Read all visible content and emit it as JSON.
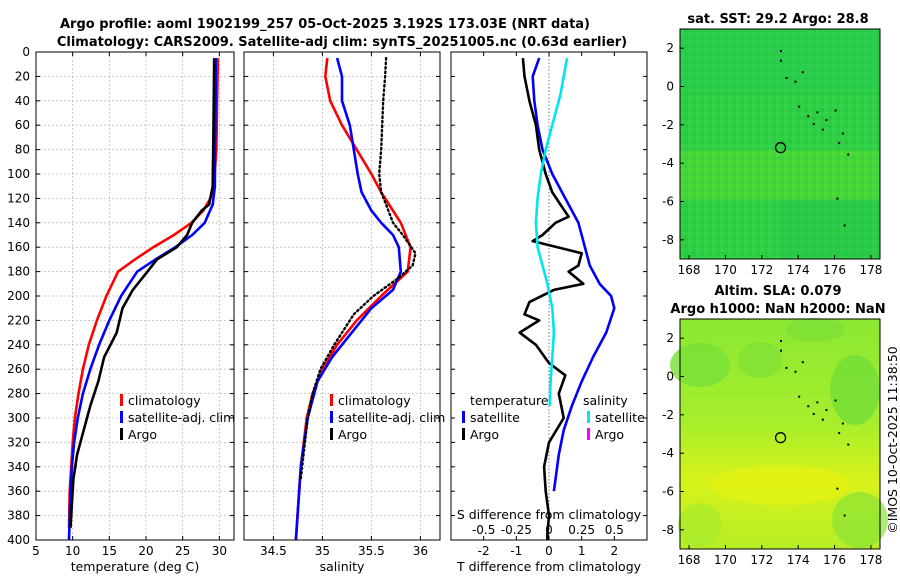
{
  "header": {
    "title_line1": "Argo profile: aoml 1902199_257 05-Oct-2025 3.192S 173.03E (NRT data)",
    "title_line2": "Climatology: CARS2009. Satellite-adj clim: synTS_20251005.nc (0.63d earlier)"
  },
  "side_stamp": "©IMOS 10-Oct-2025 11:38:50",
  "colors": {
    "climatology": "#ff0000",
    "satellite": "#0000ff",
    "argo": "#000000",
    "salinity_satellite": "#00e5ee",
    "salinity_argo": "#ff00ff"
  },
  "chart_data": [
    {
      "type": "line",
      "id": "temperature",
      "xlabel": "temperature (deg C)",
      "ylabel": "",
      "xlim": [
        5,
        32
      ],
      "ylim": [
        400,
        0
      ],
      "xticks": [
        5,
        10,
        15,
        20,
        25,
        30
      ],
      "yticks": [
        0,
        20,
        40,
        60,
        80,
        100,
        120,
        140,
        160,
        180,
        200,
        220,
        240,
        260,
        280,
        300,
        320,
        340,
        360,
        380,
        400
      ],
      "grid": true,
      "legend": [
        "climatology",
        "satellite-adj. clim",
        "Argo"
      ],
      "series": [
        {
          "name": "climatology",
          "x": [
            29.8,
            29.7,
            29.6,
            29.3,
            28.8,
            27.8,
            26.2,
            23.8,
            21.0,
            18.5,
            16.2,
            14.6,
            13.3,
            12.2,
            11.4,
            10.8,
            10.3,
            10.0,
            9.8,
            9.6,
            9.5
          ],
          "y": [
            5,
            40,
            80,
            105,
            120,
            130,
            140,
            150,
            160,
            170,
            180,
            200,
            220,
            240,
            260,
            280,
            300,
            320,
            340,
            360,
            390
          ]
        },
        {
          "name": "satellite-adj. clim",
          "x": [
            29.5,
            29.5,
            29.4,
            29.4,
            29.1,
            28.0,
            26.3,
            24.0,
            21.3,
            18.8,
            16.6,
            15.0,
            13.6,
            12.4,
            11.4,
            10.7,
            10.2,
            9.9,
            9.7,
            9.5
          ],
          "y": [
            5,
            40,
            80,
            110,
            125,
            140,
            150,
            160,
            170,
            180,
            200,
            220,
            240,
            260,
            280,
            300,
            320,
            340,
            360,
            400
          ]
        },
        {
          "name": "Argo",
          "x": [
            29.3,
            29.2,
            29.1,
            28.6,
            27.6,
            26.3,
            25.6,
            24.2,
            21.5,
            20.2,
            18.2,
            16.8,
            16.0,
            14.3,
            13.5,
            12.4,
            11.5,
            10.6,
            10.1,
            9.9,
            9.7
          ],
          "y": [
            5,
            60,
            110,
            125,
            130,
            140,
            150,
            160,
            170,
            180,
            195,
            210,
            230,
            250,
            270,
            290,
            310,
            330,
            350,
            370,
            390
          ]
        }
      ]
    },
    {
      "type": "line",
      "id": "salinity",
      "xlabel": "salinity",
      "xlim": [
        34.2,
        36.2
      ],
      "ylim": [
        400,
        0
      ],
      "xticks": [
        34.5,
        35,
        35.5,
        36
      ],
      "grid": true,
      "legend": [
        "climatology",
        "satellite-adj. clim",
        "Argo"
      ],
      "series": [
        {
          "name": "climatology",
          "x": [
            35.05,
            35.03,
            35.08,
            35.2,
            35.35,
            35.5,
            35.6,
            35.68,
            35.8,
            35.9,
            35.87,
            35.6,
            35.35,
            35.15,
            35.0,
            34.9,
            34.84,
            34.78,
            34.73
          ],
          "y": [
            5,
            20,
            40,
            60,
            80,
            100,
            115,
            125,
            140,
            160,
            180,
            200,
            220,
            240,
            260,
            280,
            300,
            340,
            400
          ]
        },
        {
          "name": "satellite-adj. clim",
          "x": [
            35.15,
            35.2,
            35.2,
            35.28,
            35.32,
            35.36,
            35.4,
            35.5,
            35.6,
            35.72,
            35.78,
            35.8,
            35.72,
            35.5,
            35.3,
            35.1,
            34.95,
            34.85,
            34.78,
            34.73
          ],
          "y": [
            5,
            20,
            40,
            60,
            80,
            100,
            115,
            130,
            140,
            150,
            160,
            180,
            195,
            210,
            230,
            250,
            270,
            300,
            340,
            400
          ]
        },
        {
          "name": "Argo",
          "x": [
            35.65,
            35.64,
            35.62,
            35.61,
            35.6,
            35.58,
            35.6,
            35.65,
            35.72,
            35.82,
            35.95,
            35.92,
            35.78,
            35.52,
            35.32,
            35.12,
            34.98,
            34.9,
            34.85,
            34.78
          ],
          "y": [
            5,
            20,
            40,
            60,
            80,
            100,
            115,
            125,
            140,
            150,
            165,
            175,
            185,
            200,
            215,
            240,
            260,
            280,
            300,
            350
          ],
          "style": "dotted"
        }
      ]
    },
    {
      "type": "line",
      "id": "difference",
      "xlabel": "T difference from climatology",
      "xlabel_top": "S difference from climatology",
      "xlim": [
        -3,
        3
      ],
      "ylim": [
        400,
        0
      ],
      "xticks": [
        -2,
        -1,
        0,
        1,
        2
      ],
      "s_tick_labels": [
        "-0.5",
        "-0.25",
        "0",
        "0.25",
        "0.5"
      ],
      "s_ticks": [
        -0.5,
        -0.25,
        0,
        0.25,
        0.5
      ],
      "grid": false,
      "legend_title_t": "temperature",
      "legend_title_s": "salinity",
      "legend_t": [
        "satellite",
        "Argo"
      ],
      "legend_s": [
        "satellite",
        "Argo"
      ],
      "series": [
        {
          "name": "T satellite",
          "x": [
            -0.3,
            -0.5,
            -0.45,
            -0.35,
            -0.2,
            0.1,
            0.5,
            0.9,
            1.1,
            1.25,
            1.55,
            1.9,
            2.0,
            1.75,
            1.35,
            1.0,
            0.7,
            0.45,
            0.3,
            0.15
          ],
          "y": [
            5,
            20,
            40,
            60,
            80,
            100,
            120,
            140,
            160,
            175,
            190,
            200,
            210,
            230,
            250,
            270,
            290,
            310,
            330,
            360
          ]
        },
        {
          "name": "T Argo",
          "x": [
            -0.8,
            -0.75,
            -0.6,
            -0.4,
            -0.3,
            -0.1,
            0.1,
            0.35,
            0.6,
            0.2,
            -0.2,
            -0.5,
            1.0,
            0.9,
            0.6,
            1.05,
            0.15,
            -0.6,
            -0.75,
            -0.3,
            -0.9,
            -0.4,
            0.0,
            0.5,
            0.3,
            0.45,
            0.0,
            -0.15,
            -0.1,
            0.0,
            -0.05,
            -0.05
          ],
          "y": [
            5,
            20,
            40,
            60,
            80,
            100,
            115,
            125,
            135,
            140,
            150,
            155,
            165,
            175,
            180,
            190,
            195,
            205,
            215,
            220,
            230,
            240,
            255,
            265,
            280,
            300,
            320,
            340,
            360,
            380,
            395,
            400
          ]
        },
        {
          "name": "S satellite",
          "x": [
            0.55,
            0.45,
            0.35,
            0.2,
            0.05,
            -0.1,
            -0.25,
            -0.35,
            -0.4,
            -0.35,
            -0.2,
            -0.05,
            0.1,
            0.15,
            0.1,
            0.05,
            0.02
          ],
          "y": [
            5,
            20,
            35,
            50,
            65,
            80,
            100,
            120,
            140,
            160,
            175,
            190,
            210,
            230,
            250,
            270,
            290
          ]
        }
      ]
    },
    {
      "type": "heatmap",
      "id": "sst_map",
      "title": "sat. SST: 29.2 Argo: 28.8",
      "xlim": [
        167.5,
        178.5
      ],
      "ylim": [
        -9,
        3
      ],
      "xticks": [
        168,
        170,
        172,
        174,
        176,
        178
      ],
      "yticks": [
        -8,
        -6,
        -4,
        -2,
        0,
        2
      ],
      "marker_lon": 173.03,
      "marker_lat": -3.192
    },
    {
      "type": "heatmap",
      "id": "sla_map",
      "title_line1": "Altim. SLA: 0.079",
      "title_line2": "Argo h1000: NaN h2000: NaN",
      "xlim": [
        167.5,
        178.5
      ],
      "ylim": [
        -9,
        3
      ],
      "xticks": [
        168,
        170,
        172,
        174,
        176,
        178
      ],
      "yticks": [
        -8,
        -6,
        -4,
        -2,
        0,
        2
      ],
      "marker_lon": 173.03,
      "marker_lat": -3.192
    }
  ]
}
